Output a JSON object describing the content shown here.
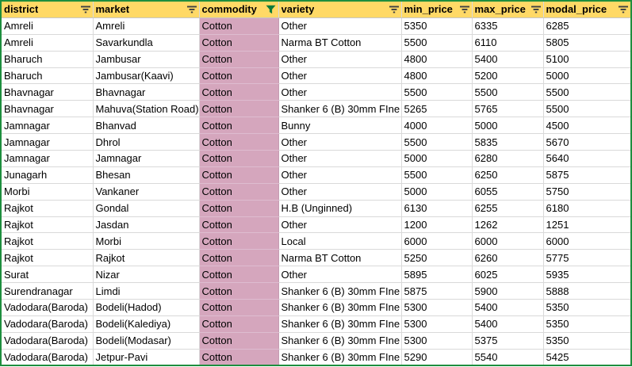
{
  "app": {
    "description": "Spreadsheet view of commodity market prices with column filters",
    "active_filter_column": "commodity"
  },
  "colors": {
    "header_bg": "#ffd966",
    "filtered_column_bg": "#d5a6bd",
    "grid_line": "#d9d9d9",
    "range_border": "#1e8e3e",
    "filter_icon": "#3c4043",
    "active_filter_icon": "#0b7a3b",
    "text": "#000000"
  },
  "table": {
    "columns": [
      {
        "key": "district",
        "label": "district",
        "filter": "available"
      },
      {
        "key": "market",
        "label": "market",
        "filter": "available"
      },
      {
        "key": "commodity",
        "label": "commodity",
        "filter": "active"
      },
      {
        "key": "variety",
        "label": "variety",
        "filter": "available"
      },
      {
        "key": "min_price",
        "label": "min_price",
        "filter": "available"
      },
      {
        "key": "max_price",
        "label": "max_price",
        "filter": "available"
      },
      {
        "key": "modal_price",
        "label": "modal_price",
        "filter": "available"
      }
    ],
    "rows": [
      [
        "Amreli",
        "Amreli",
        "Cotton",
        "Other",
        5350,
        6335,
        6285
      ],
      [
        "Amreli",
        "Savarkundla",
        "Cotton",
        "Narma BT Cotton",
        5500,
        6110,
        5805
      ],
      [
        "Bharuch",
        "Jambusar",
        "Cotton",
        "Other",
        4800,
        5400,
        5100
      ],
      [
        "Bharuch",
        "Jambusar(Kaavi)",
        "Cotton",
        "Other",
        4800,
        5200,
        5000
      ],
      [
        "Bhavnagar",
        "Bhavnagar",
        "Cotton",
        "Other",
        5500,
        5500,
        5500
      ],
      [
        "Bhavnagar",
        "Mahuva(Station Road)",
        "Cotton",
        "Shanker 6 (B) 30mm FIne",
        5265,
        5765,
        5500
      ],
      [
        "Jamnagar",
        "Bhanvad",
        "Cotton",
        "Bunny",
        4000,
        5000,
        4500
      ],
      [
        "Jamnagar",
        "Dhrol",
        "Cotton",
        "Other",
        5500,
        5835,
        5670
      ],
      [
        "Jamnagar",
        "Jamnagar",
        "Cotton",
        "Other",
        5000,
        6280,
        5640
      ],
      [
        "Junagarh",
        "Bhesan",
        "Cotton",
        "Other",
        5500,
        6250,
        5875
      ],
      [
        "Morbi",
        "Vankaner",
        "Cotton",
        "Other",
        5000,
        6055,
        5750
      ],
      [
        "Rajkot",
        "Gondal",
        "Cotton",
        "H.B (Unginned)",
        6130,
        6255,
        6180
      ],
      [
        "Rajkot",
        "Jasdan",
        "Cotton",
        "Other",
        1200,
        1262,
        1251
      ],
      [
        "Rajkot",
        "Morbi",
        "Cotton",
        "Local",
        6000,
        6000,
        6000
      ],
      [
        "Rajkot",
        "Rajkot",
        "Cotton",
        "Narma BT Cotton",
        5250,
        6260,
        5775
      ],
      [
        "Surat",
        "Nizar",
        "Cotton",
        "Other",
        5895,
        6025,
        5935
      ],
      [
        "Surendranagar",
        "Limdi",
        "Cotton",
        "Shanker 6 (B) 30mm FIne",
        5875,
        5900,
        5888
      ],
      [
        "Vadodara(Baroda)",
        "Bodeli(Hadod)",
        "Cotton",
        "Shanker 6 (B) 30mm FIne",
        5300,
        5400,
        5350
      ],
      [
        "Vadodara(Baroda)",
        "Bodeli(Kalediya)",
        "Cotton",
        "Shanker 6 (B) 30mm FIne",
        5300,
        5400,
        5350
      ],
      [
        "Vadodara(Baroda)",
        "Bodeli(Modasar)",
        "Cotton",
        "Shanker 6 (B) 30mm FIne",
        5300,
        5375,
        5350
      ],
      [
        "Vadodara(Baroda)",
        "Jetpur-Pavi",
        "Cotton",
        "Shanker 6 (B) 30mm FIne",
        5290,
        5540,
        5425
      ]
    ]
  }
}
